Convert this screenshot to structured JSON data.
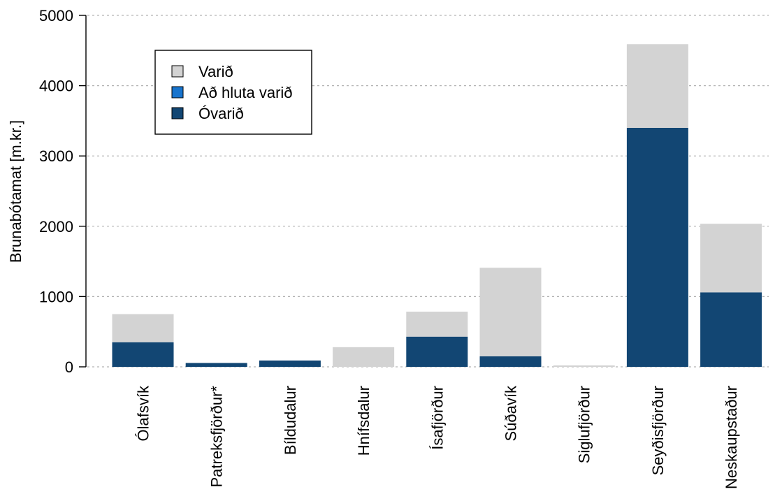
{
  "chart_data": {
    "type": "bar",
    "stacked": true,
    "title": "",
    "xlabel": "",
    "ylabel": "Brunabótamat [m.kr.]",
    "ylim": [
      0,
      5000
    ],
    "yticks": [
      0,
      1000,
      2000,
      3000,
      4000,
      5000
    ],
    "grid": "horizontal dashed",
    "legend_position": "top-left",
    "categories": [
      "Ólafsvík",
      "Patreksfjörður*",
      "Bíldudalur",
      "Hnífsdalur",
      "Ísafjörður",
      "Súðavík",
      "Siglufjörður",
      "Seyðisfjörður",
      "Neskaupstaður"
    ],
    "series": [
      {
        "name": "Óvarið",
        "color": "#124673",
        "values": [
          350,
          55,
          90,
          0,
          430,
          150,
          0,
          3400,
          1060
        ]
      },
      {
        "name": "Að hluta varið",
        "color": "#1874cd",
        "values": [
          0,
          0,
          0,
          0,
          0,
          0,
          0,
          0,
          0
        ]
      },
      {
        "name": "Varið",
        "color": "#d3d3d3",
        "values": [
          400,
          0,
          0,
          280,
          355,
          1260,
          20,
          1190,
          975
        ]
      }
    ],
    "legend_order": [
      "Varið",
      "Að hluta varið",
      "Óvarið"
    ]
  }
}
